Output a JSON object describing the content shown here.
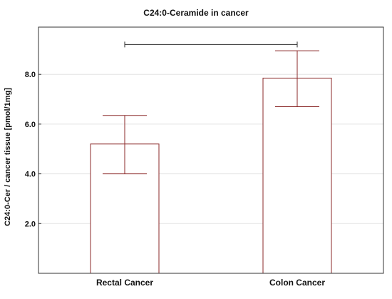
{
  "chart_data": {
    "type": "bar",
    "title": "C24:0-Ceramide in cancer",
    "xlabel": "",
    "ylabel": "C24:0-Cer / cancer tissue [pmol/1mg]",
    "categories": [
      "Rectal Cancer",
      "Colon Cancer"
    ],
    "values": [
      5.2,
      7.85
    ],
    "error_low": [
      4.0,
      6.7
    ],
    "error_high": [
      6.35,
      8.95
    ],
    "ylim": [
      0,
      9.9
    ],
    "yticks": [
      2.0,
      4.0,
      6.0,
      8.0
    ],
    "ytick_labels": [
      "2.0",
      "4.0",
      "6.0",
      "8.0"
    ],
    "grid": true,
    "significance_bracket": {
      "between": [
        "Rectal Cancer",
        "Colon Cancer"
      ],
      "y": 9.2
    },
    "colors": {
      "bar_fill": "#ffffff",
      "bar_stroke": "#8b2a2a",
      "error_bar": "#8b2a2a",
      "bracket": "#2b2b2b",
      "grid": "#e3e3e3",
      "axis": "#333333"
    }
  }
}
